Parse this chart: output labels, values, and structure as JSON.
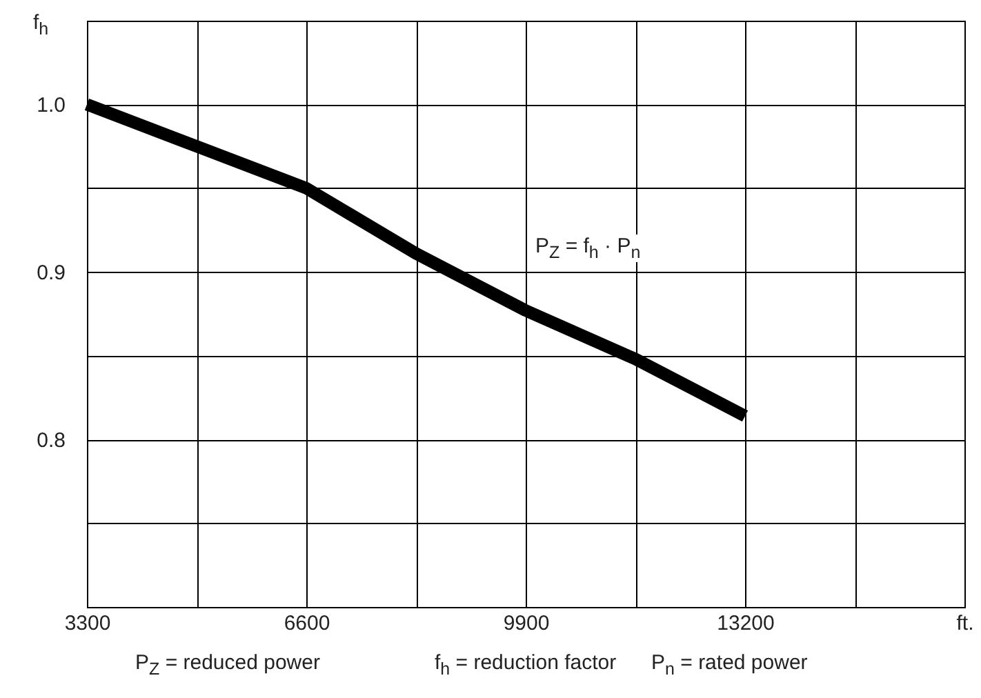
{
  "chart_data": {
    "type": "line",
    "ylabel": "f$_{h}$",
    "x": [
      3300,
      4950,
      6600,
      8250,
      9900,
      11550,
      13200
    ],
    "series": [
      {
        "color": "#000000",
        "values": [
          1.0,
          0.975,
          0.95,
          0.911,
          0.877,
          0.848,
          0.814
        ]
      }
    ],
    "xlim": [
      3300,
      16500
    ],
    "xticks": [
      3300,
      {
        "value": 4950,
        "label": null
      },
      6600,
      {
        "value": 8250,
        "label": null
      },
      9900,
      {
        "value": 11550,
        "label": null
      },
      13200,
      {
        "value": 14850,
        "label": null
      },
      {
        "value": 16500,
        "label": "ft."
      }
    ],
    "ylim": [
      0.7,
      1.05
    ],
    "yticks": [
      {
        "value": 0.7,
        "label": null
      },
      {
        "value": 0.75,
        "label": null
      },
      {
        "value": 0.8,
        "label": "0.8"
      },
      {
        "value": 0.85,
        "label": null
      },
      {
        "value": 0.9,
        "label": "0.9"
      },
      {
        "value": 0.95,
        "label": null
      },
      {
        "value": 1.0,
        "label": "1.0"
      },
      {
        "value": 1.05,
        "label": null
      }
    ],
    "grid": true,
    "annotations": [
      "P$_{Z}$ = f$_{h}$ · P$_{n}$",
      "P$_{Z}$ = reduced power",
      "f$_{h}$ = reduction factor",
      "P$_{n}$ = rated power"
    ]
  }
}
